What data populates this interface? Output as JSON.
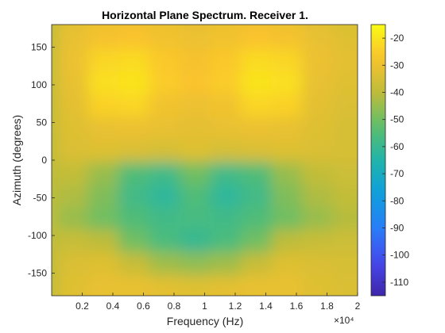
{
  "chart_data": {
    "type": "heatmap",
    "title": "Horizontal Plane Spectrum. Receiver 1.",
    "xlabel": "Frequency (Hz)",
    "ylabel": "Azimuth (degrees)",
    "x_exponent_label": "×10⁴",
    "xlim": [
      0,
      20000
    ],
    "ylim": [
      -180,
      180
    ],
    "x_ticks": [
      2000,
      4000,
      6000,
      8000,
      10000,
      12000,
      14000,
      16000,
      18000,
      20000
    ],
    "x_tick_labels": [
      "0.2",
      "0.4",
      "0.6",
      "0.8",
      "1",
      "1.2",
      "1.4",
      "1.6",
      "1.8",
      "2"
    ],
    "y_ticks": [
      -150,
      -100,
      -50,
      0,
      50,
      100,
      150
    ],
    "y_tick_labels": [
      "-150",
      "-100",
      "-50",
      "0",
      "50",
      "100",
      "150"
    ],
    "colorbar": {
      "clim": [
        -115,
        -15
      ],
      "ticks": [
        -110,
        -100,
        -90,
        -80,
        -70,
        -60,
        -50,
        -40,
        -30,
        -20
      ],
      "tick_labels": [
        "-110",
        "-100",
        "-90",
        "-80",
        "-70",
        "-60",
        "-50",
        "-40",
        "-30",
        "-20"
      ],
      "colormap": "parula"
    },
    "frequency_bins_hz": [
      0,
      2000,
      4000,
      6000,
      8000,
      10000,
      12000,
      14000,
      16000,
      18000,
      20000
    ],
    "azimuth_bins_deg": [
      180,
      150,
      120,
      90,
      60,
      30,
      0,
      -30,
      -60,
      -90,
      -120,
      -150,
      -180
    ],
    "values_db": [
      [
        -40,
        -33,
        -31,
        -30,
        -31,
        -32,
        -31,
        -30,
        -31,
        -33,
        -35
      ],
      [
        -40,
        -31,
        -28,
        -27,
        -29,
        -30,
        -29,
        -27,
        -28,
        -31,
        -33
      ],
      [
        -40,
        -30,
        -23,
        -22,
        -26,
        -28,
        -26,
        -22,
        -23,
        -30,
        -32
      ],
      [
        -40,
        -31,
        -21,
        -20,
        -25,
        -27,
        -25,
        -20,
        -21,
        -31,
        -33
      ],
      [
        -40,
        -32,
        -24,
        -23,
        -29,
        -30,
        -29,
        -23,
        -24,
        -32,
        -34
      ],
      [
        -40,
        -33,
        -31,
        -30,
        -31,
        -32,
        -31,
        -30,
        -31,
        -33,
        -35
      ],
      [
        -40,
        -34,
        -33,
        -34,
        -35,
        -33,
        -35,
        -34,
        -33,
        -34,
        -35
      ],
      [
        -40,
        -39,
        -45,
        -55,
        -58,
        -50,
        -58,
        -55,
        -45,
        -39,
        -37
      ],
      [
        -40,
        -42,
        -48,
        -58,
        -62,
        -55,
        -62,
        -58,
        -48,
        -42,
        -39
      ],
      [
        -40,
        -45,
        -50,
        -55,
        -58,
        -57,
        -58,
        -55,
        -50,
        -45,
        -41
      ],
      [
        -40,
        -38,
        -40,
        -50,
        -56,
        -60,
        -56,
        -50,
        -40,
        -38,
        -37
      ],
      [
        -40,
        -34,
        -33,
        -38,
        -44,
        -46,
        -44,
        -38,
        -33,
        -34,
        -35
      ],
      [
        -40,
        -33,
        -31,
        -31,
        -32,
        -33,
        -32,
        -31,
        -31,
        -33,
        -34
      ]
    ]
  }
}
